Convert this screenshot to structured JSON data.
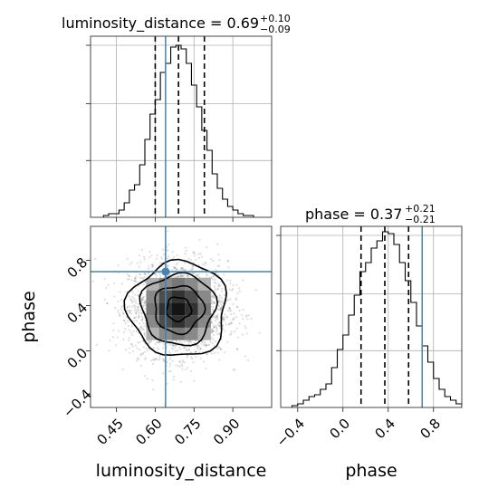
{
  "chart_data": {
    "type": "corner",
    "parameters": [
      "luminosity_distance",
      "phase"
    ],
    "truth": {
      "luminosity_distance": 0.64,
      "phase": 0.7
    },
    "truth_color": "#4682b4",
    "panels": [
      {
        "id": "hist-luminosity-distance",
        "type": "histogram",
        "title": "luminosity_distance = 0.69",
        "title_sup": "+0.10",
        "title_sub": "−0.09",
        "xlim": [
          0.35,
          1.05
        ],
        "ylim": [
          0,
          1.0
        ],
        "quantiles": [
          0.6,
          0.69,
          0.79
        ],
        "bin_edges": [
          0.4,
          0.42,
          0.44,
          0.46,
          0.48,
          0.5,
          0.52,
          0.54,
          0.56,
          0.58,
          0.6,
          0.62,
          0.64,
          0.66,
          0.68,
          0.7,
          0.72,
          0.74,
          0.76,
          0.78,
          0.8,
          0.82,
          0.84,
          0.86,
          0.88,
          0.9,
          0.92,
          0.94,
          0.96,
          0.98
        ],
        "counts": [
          0.01,
          0.02,
          0.02,
          0.04,
          0.08,
          0.15,
          0.18,
          0.29,
          0.43,
          0.57,
          0.65,
          0.8,
          0.85,
          0.94,
          0.95,
          0.93,
          0.85,
          0.73,
          0.61,
          0.48,
          0.37,
          0.24,
          0.16,
          0.1,
          0.06,
          0.04,
          0.02,
          0.01,
          0.01
        ]
      },
      {
        "id": "hist-phase",
        "type": "histogram",
        "title": "phase = 0.37",
        "title_sup": "+0.21",
        "title_sub": "−0.21",
        "xlabel": "phase",
        "xlim": [
          -0.55,
          1.05
        ],
        "ylim": [
          0,
          1.0
        ],
        "quantiles": [
          0.16,
          0.37,
          0.58
        ],
        "x_ticks": [
          "−0.4",
          "0.0",
          "0.4",
          "0.8"
        ],
        "x_tick_values": [
          -0.4,
          0.0,
          0.4,
          0.8
        ],
        "bin_edges": [
          -0.45,
          -0.4,
          -0.35,
          -0.3,
          -0.25,
          -0.2,
          -0.15,
          -0.1,
          -0.05,
          0.0,
          0.05,
          0.1,
          0.15,
          0.2,
          0.25,
          0.3,
          0.35,
          0.4,
          0.45,
          0.5,
          0.55,
          0.6,
          0.65,
          0.7,
          0.75,
          0.8,
          0.85,
          0.9,
          0.95,
          1.0,
          1.05
        ],
        "counts": [
          0.01,
          0.02,
          0.04,
          0.06,
          0.07,
          0.1,
          0.13,
          0.22,
          0.32,
          0.4,
          0.51,
          0.62,
          0.75,
          0.8,
          0.88,
          0.92,
          0.97,
          0.96,
          0.9,
          0.8,
          0.7,
          0.58,
          0.45,
          0.34,
          0.25,
          0.16,
          0.1,
          0.06,
          0.04,
          0.02
        ]
      },
      {
        "id": "joint",
        "type": "2d-density",
        "xlabel": "luminosity_distance",
        "ylabel": "phase",
        "xlim": [
          0.35,
          1.05
        ],
        "ylim": [
          -0.5,
          1.1
        ],
        "x_ticks": [
          "0.45",
          "0.60",
          "0.75",
          "0.90"
        ],
        "x_tick_values": [
          0.45,
          0.6,
          0.75,
          0.9
        ],
        "y_ticks": [
          "−0.4",
          "0.0",
          "0.4",
          "0.8"
        ],
        "y_tick_values": [
          -0.4,
          0.0,
          0.4,
          0.8
        ],
        "center": [
          0.69,
          0.37
        ],
        "sigma": [
          0.095,
          0.21
        ],
        "contour_sigma_levels": [
          0.5,
          1.0,
          1.5,
          2.0
        ]
      }
    ]
  }
}
